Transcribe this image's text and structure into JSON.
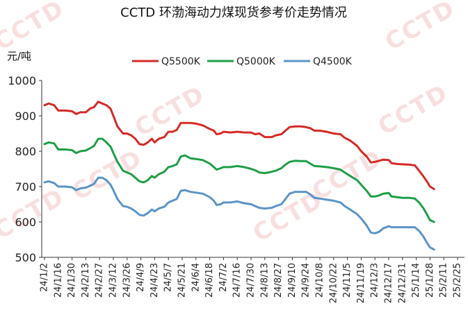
{
  "chart_data": {
    "type": "line",
    "title": "CCTD 环渤海动力煤现货参考价走势情况",
    "ylabel": "元/吨",
    "xlabel": "",
    "ylim": [
      500,
      1000
    ],
    "yticks": [
      500,
      600,
      700,
      800,
      900,
      1000
    ],
    "grid": false,
    "legend_position": "top",
    "watermark": "CCTD",
    "watermark_color": "#f4c6c6",
    "x_tick_labels": [
      "24/1/2",
      "24/1/16",
      "24/1/30",
      "24/2/13",
      "24/2/27",
      "24/3/12",
      "24/3/26",
      "24/4/9",
      "24/4/23",
      "24/5/7",
      "24/5/21",
      "24/6/4",
      "24/6/18",
      "24/7/2",
      "24/7/16",
      "24/7/30",
      "24/8/13",
      "24/8/27",
      "24/9/10",
      "24/9/24",
      "24/10/8",
      "24/10/22",
      "24/11/5",
      "24/11/19",
      "24/12/3",
      "24/12/17",
      "24/12/31",
      "25/1/14",
      "25/1/28",
      "25/2/11",
      "25/2/25"
    ],
    "series": [
      {
        "name": "Q5500K",
        "color": "#d42a25",
        "points": [
          [
            0,
            930
          ],
          [
            0.3,
            935
          ],
          [
            0.7,
            930
          ],
          [
            1,
            915
          ],
          [
            1.5,
            915
          ],
          [
            2,
            913
          ],
          [
            2.3,
            905
          ],
          [
            2.6,
            910
          ],
          [
            3,
            910
          ],
          [
            3.3,
            920
          ],
          [
            3.6,
            925
          ],
          [
            3.9,
            940
          ],
          [
            4.2,
            935
          ],
          [
            4.5,
            930
          ],
          [
            4.8,
            920
          ],
          [
            5,
            900
          ],
          [
            5.3,
            870
          ],
          [
            5.7,
            850
          ],
          [
            6,
            850
          ],
          [
            6.3,
            845
          ],
          [
            6.6,
            835
          ],
          [
            6.9,
            820
          ],
          [
            7.2,
            818
          ],
          [
            7.5,
            825
          ],
          [
            7.8,
            835
          ],
          [
            8,
            825
          ],
          [
            8.3,
            835
          ],
          [
            8.7,
            840
          ],
          [
            9,
            855
          ],
          [
            9.3,
            855
          ],
          [
            9.6,
            860
          ],
          [
            9.9,
            880
          ],
          [
            10.2,
            880
          ],
          [
            10.6,
            880
          ],
          [
            11,
            878
          ],
          [
            11.5,
            873
          ],
          [
            12,
            863
          ],
          [
            12.3,
            858
          ],
          [
            12.5,
            848
          ],
          [
            12.8,
            850
          ],
          [
            13,
            855
          ],
          [
            13.5,
            853
          ],
          [
            14,
            855
          ],
          [
            14.5,
            853
          ],
          [
            15,
            853
          ],
          [
            15.3,
            848
          ],
          [
            15.6,
            850
          ],
          [
            16,
            840
          ],
          [
            16.5,
            840
          ],
          [
            16.8,
            845
          ],
          [
            17.2,
            848
          ],
          [
            17.5,
            858
          ],
          [
            17.8,
            868
          ],
          [
            18.2,
            870
          ],
          [
            18.6,
            870
          ],
          [
            19,
            868
          ],
          [
            19.3,
            865
          ],
          [
            19.6,
            858
          ],
          [
            20,
            858
          ],
          [
            20.5,
            855
          ],
          [
            21,
            850
          ],
          [
            21.5,
            848
          ],
          [
            21.8,
            838
          ],
          [
            22.2,
            830
          ],
          [
            22.7,
            815
          ],
          [
            23,
            800
          ],
          [
            23.4,
            785
          ],
          [
            23.7,
            768
          ],
          [
            24,
            770
          ],
          [
            24.3,
            773
          ],
          [
            24.6,
            776
          ],
          [
            25,
            775
          ],
          [
            25.2,
            766
          ],
          [
            25.6,
            764
          ],
          [
            26,
            763
          ],
          [
            26.5,
            762
          ],
          [
            26.9,
            760
          ],
          [
            27.2,
            745
          ],
          [
            27.5,
            730
          ],
          [
            27.8,
            713
          ],
          [
            28,
            700
          ],
          [
            28.3,
            693
          ]
        ]
      },
      {
        "name": "Q5000K",
        "color": "#1e9e46",
        "points": [
          [
            0,
            820
          ],
          [
            0.3,
            825
          ],
          [
            0.7,
            822
          ],
          [
            1,
            805
          ],
          [
            1.5,
            805
          ],
          [
            2,
            803
          ],
          [
            2.3,
            795
          ],
          [
            2.6,
            800
          ],
          [
            3,
            802
          ],
          [
            3.3,
            808
          ],
          [
            3.6,
            815
          ],
          [
            3.9,
            835
          ],
          [
            4.2,
            835
          ],
          [
            4.5,
            825
          ],
          [
            4.8,
            813
          ],
          [
            5,
            795
          ],
          [
            5.3,
            770
          ],
          [
            5.7,
            745
          ],
          [
            6,
            740
          ],
          [
            6.3,
            735
          ],
          [
            6.6,
            725
          ],
          [
            6.9,
            715
          ],
          [
            7.2,
            712
          ],
          [
            7.5,
            718
          ],
          [
            7.8,
            730
          ],
          [
            8,
            725
          ],
          [
            8.3,
            735
          ],
          [
            8.7,
            742
          ],
          [
            9,
            755
          ],
          [
            9.3,
            758
          ],
          [
            9.6,
            763
          ],
          [
            9.9,
            785
          ],
          [
            10.2,
            788
          ],
          [
            10.6,
            780
          ],
          [
            11,
            778
          ],
          [
            11.5,
            775
          ],
          [
            12,
            765
          ],
          [
            12.3,
            755
          ],
          [
            12.5,
            748
          ],
          [
            12.8,
            752
          ],
          [
            13,
            755
          ],
          [
            13.5,
            755
          ],
          [
            14,
            758
          ],
          [
            14.5,
            755
          ],
          [
            15,
            750
          ],
          [
            15.3,
            746
          ],
          [
            15.6,
            740
          ],
          [
            16,
            738
          ],
          [
            16.5,
            742
          ],
          [
            16.8,
            745
          ],
          [
            17.2,
            752
          ],
          [
            17.5,
            762
          ],
          [
            17.8,
            770
          ],
          [
            18.2,
            773
          ],
          [
            18.6,
            772
          ],
          [
            19,
            772
          ],
          [
            19.3,
            765
          ],
          [
            19.6,
            758
          ],
          [
            20,
            757
          ],
          [
            20.5,
            755
          ],
          [
            21,
            752
          ],
          [
            21.5,
            748
          ],
          [
            21.8,
            740
          ],
          [
            22.2,
            730
          ],
          [
            22.7,
            718
          ],
          [
            23,
            705
          ],
          [
            23.4,
            688
          ],
          [
            23.7,
            672
          ],
          [
            24,
            672
          ],
          [
            24.3,
            675
          ],
          [
            24.6,
            680
          ],
          [
            25,
            682
          ],
          [
            25.2,
            672
          ],
          [
            25.6,
            670
          ],
          [
            26,
            668
          ],
          [
            26.5,
            668
          ],
          [
            26.9,
            666
          ],
          [
            27.2,
            655
          ],
          [
            27.5,
            640
          ],
          [
            27.8,
            620
          ],
          [
            28,
            605
          ],
          [
            28.3,
            600
          ]
        ]
      },
      {
        "name": "Q4500K",
        "color": "#5a94c8",
        "points": [
          [
            0,
            712
          ],
          [
            0.3,
            715
          ],
          [
            0.7,
            710
          ],
          [
            1,
            700
          ],
          [
            1.5,
            700
          ],
          [
            2,
            698
          ],
          [
            2.3,
            690
          ],
          [
            2.6,
            695
          ],
          [
            3,
            697
          ],
          [
            3.3,
            702
          ],
          [
            3.6,
            708
          ],
          [
            3.9,
            725
          ],
          [
            4.2,
            725
          ],
          [
            4.5,
            718
          ],
          [
            4.8,
            705
          ],
          [
            5,
            690
          ],
          [
            5.3,
            665
          ],
          [
            5.7,
            645
          ],
          [
            6,
            643
          ],
          [
            6.3,
            638
          ],
          [
            6.6,
            630
          ],
          [
            6.9,
            620
          ],
          [
            7.2,
            618
          ],
          [
            7.5,
            625
          ],
          [
            7.8,
            635
          ],
          [
            8,
            630
          ],
          [
            8.3,
            638
          ],
          [
            8.7,
            643
          ],
          [
            9,
            655
          ],
          [
            9.3,
            660
          ],
          [
            9.6,
            665
          ],
          [
            9.9,
            688
          ],
          [
            10.2,
            690
          ],
          [
            10.6,
            685
          ],
          [
            11,
            683
          ],
          [
            11.5,
            680
          ],
          [
            12,
            670
          ],
          [
            12.3,
            660
          ],
          [
            12.5,
            648
          ],
          [
            12.8,
            650
          ],
          [
            13,
            655
          ],
          [
            13.5,
            655
          ],
          [
            14,
            658
          ],
          [
            14.5,
            653
          ],
          [
            15,
            650
          ],
          [
            15.3,
            645
          ],
          [
            15.6,
            640
          ],
          [
            16,
            638
          ],
          [
            16.5,
            640
          ],
          [
            16.8,
            645
          ],
          [
            17.2,
            650
          ],
          [
            17.5,
            665
          ],
          [
            17.8,
            680
          ],
          [
            18.2,
            685
          ],
          [
            18.6,
            685
          ],
          [
            19,
            685
          ],
          [
            19.3,
            678
          ],
          [
            19.6,
            668
          ],
          [
            20,
            666
          ],
          [
            20.5,
            663
          ],
          [
            21,
            660
          ],
          [
            21.5,
            655
          ],
          [
            21.8,
            645
          ],
          [
            22.2,
            635
          ],
          [
            22.7,
            622
          ],
          [
            23,
            610
          ],
          [
            23.4,
            590
          ],
          [
            23.7,
            570
          ],
          [
            24,
            568
          ],
          [
            24.3,
            572
          ],
          [
            24.6,
            582
          ],
          [
            25,
            588
          ],
          [
            25.2,
            585
          ],
          [
            25.6,
            585
          ],
          [
            26,
            585
          ],
          [
            26.5,
            585
          ],
          [
            26.9,
            585
          ],
          [
            27.2,
            575
          ],
          [
            27.5,
            560
          ],
          [
            27.8,
            540
          ],
          [
            28,
            528
          ],
          [
            28.3,
            522
          ]
        ]
      }
    ]
  }
}
